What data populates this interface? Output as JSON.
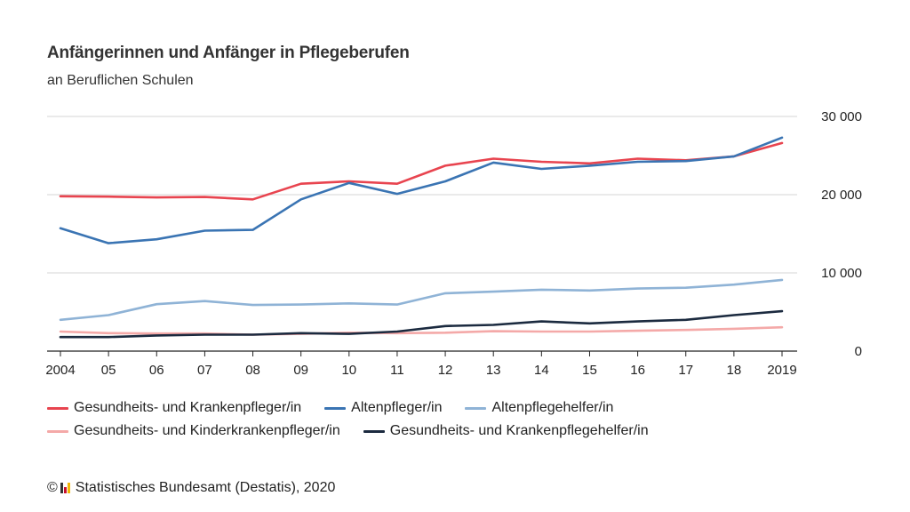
{
  "header": {
    "title": "Anfängerinnen und Anfänger in Pflegeberufen",
    "subtitle": "an Beruflichen Schulen"
  },
  "chart_data": {
    "type": "line",
    "title": "Anfängerinnen und Anfänger in Pflegeberufen",
    "subtitle": "an Beruflichen Schulen",
    "x": [
      2004,
      2005,
      2006,
      2007,
      2008,
      2009,
      2010,
      2011,
      2012,
      2013,
      2014,
      2015,
      2016,
      2017,
      2018,
      2019
    ],
    "x_tick_labels": [
      "2004",
      "05",
      "06",
      "07",
      "08",
      "09",
      "10",
      "11",
      "12",
      "13",
      "14",
      "15",
      "16",
      "17",
      "18",
      "2019"
    ],
    "ylim": [
      0,
      30000
    ],
    "y_ticks": [
      0,
      10000,
      20000,
      30000
    ],
    "y_tick_labels": [
      "0",
      "10 000",
      "20 000",
      "30 000"
    ],
    "y_axis_side": "right",
    "grid": true,
    "legend_position": "bottom",
    "series": [
      {
        "name": "Gesundheits- und Krankenpfleger/in",
        "color": "#e8444f",
        "values": [
          19800,
          19750,
          19650,
          19700,
          19400,
          21400,
          21700,
          21400,
          23700,
          24600,
          24200,
          24000,
          24600,
          24400,
          24900,
          26600
        ]
      },
      {
        "name": "Altenpfleger/in",
        "color": "#3a74b3",
        "values": [
          15700,
          13800,
          14300,
          15400,
          15500,
          19400,
          21500,
          20100,
          21700,
          24100,
          23300,
          23700,
          24200,
          24300,
          24900,
          27300
        ]
      },
      {
        "name": "Altenpflegehelfer/in",
        "color": "#8fb3d6",
        "values": [
          4000,
          4600,
          6000,
          6400,
          5900,
          5950,
          6100,
          5950,
          7400,
          7600,
          7850,
          7750,
          8000,
          8100,
          8500,
          9100
        ]
      },
      {
        "name": "Gesundheits- und Kinderkrankenpfleger/in",
        "color": "#f4a9a8",
        "values": [
          2500,
          2300,
          2250,
          2250,
          2100,
          2200,
          2350,
          2300,
          2350,
          2550,
          2500,
          2500,
          2600,
          2700,
          2850,
          3050
        ]
      },
      {
        "name": "Gesundheits- und Krankenpflegehelfer/in",
        "color": "#1b2a3f",
        "values": [
          1800,
          1800,
          2000,
          2100,
          2100,
          2300,
          2200,
          2500,
          3200,
          3350,
          3800,
          3550,
          3800,
          4000,
          4600,
          5100
        ]
      }
    ]
  },
  "legend": {
    "rows": [
      [
        0,
        1,
        2
      ],
      [
        3,
        4
      ]
    ]
  },
  "source": {
    "copyright": "©",
    "text": "Statistisches Bundesamt (Destatis), 2020",
    "logo_colors": [
      "#333333",
      "#c8102e",
      "#f2b705"
    ]
  }
}
